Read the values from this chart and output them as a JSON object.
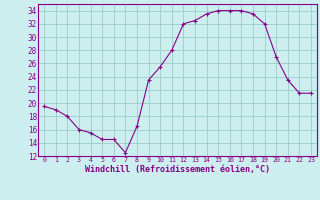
{
  "hours": [
    0,
    1,
    2,
    3,
    4,
    5,
    6,
    7,
    8,
    9,
    10,
    11,
    12,
    13,
    14,
    15,
    16,
    17,
    18,
    19,
    20,
    21,
    22,
    23
  ],
  "values": [
    19.5,
    19.0,
    18.0,
    16.0,
    15.5,
    14.5,
    14.5,
    12.5,
    16.5,
    23.5,
    25.5,
    28.0,
    32.0,
    32.5,
    33.5,
    34.0,
    34.0,
    34.0,
    33.5,
    32.0,
    27.0,
    23.5,
    21.5,
    21.5
  ],
  "line_color": "#880088",
  "marker": "+",
  "bg_color": "#cceeee",
  "grid_color": "#99cccc",
  "xlabel": "Windchill (Refroidissement éolien,°C)",
  "xlabel_color": "#880088",
  "ylim": [
    12,
    35
  ],
  "yticks": [
    12,
    14,
    16,
    18,
    20,
    22,
    24,
    26,
    28,
    30,
    32,
    34
  ],
  "xlim": [
    -0.5,
    23.5
  ],
  "xticks": [
    0,
    1,
    2,
    3,
    4,
    5,
    6,
    7,
    8,
    9,
    10,
    11,
    12,
    13,
    14,
    15,
    16,
    17,
    18,
    19,
    20,
    21,
    22,
    23
  ],
  "tick_color": "#880088",
  "spine_color": "#880088"
}
